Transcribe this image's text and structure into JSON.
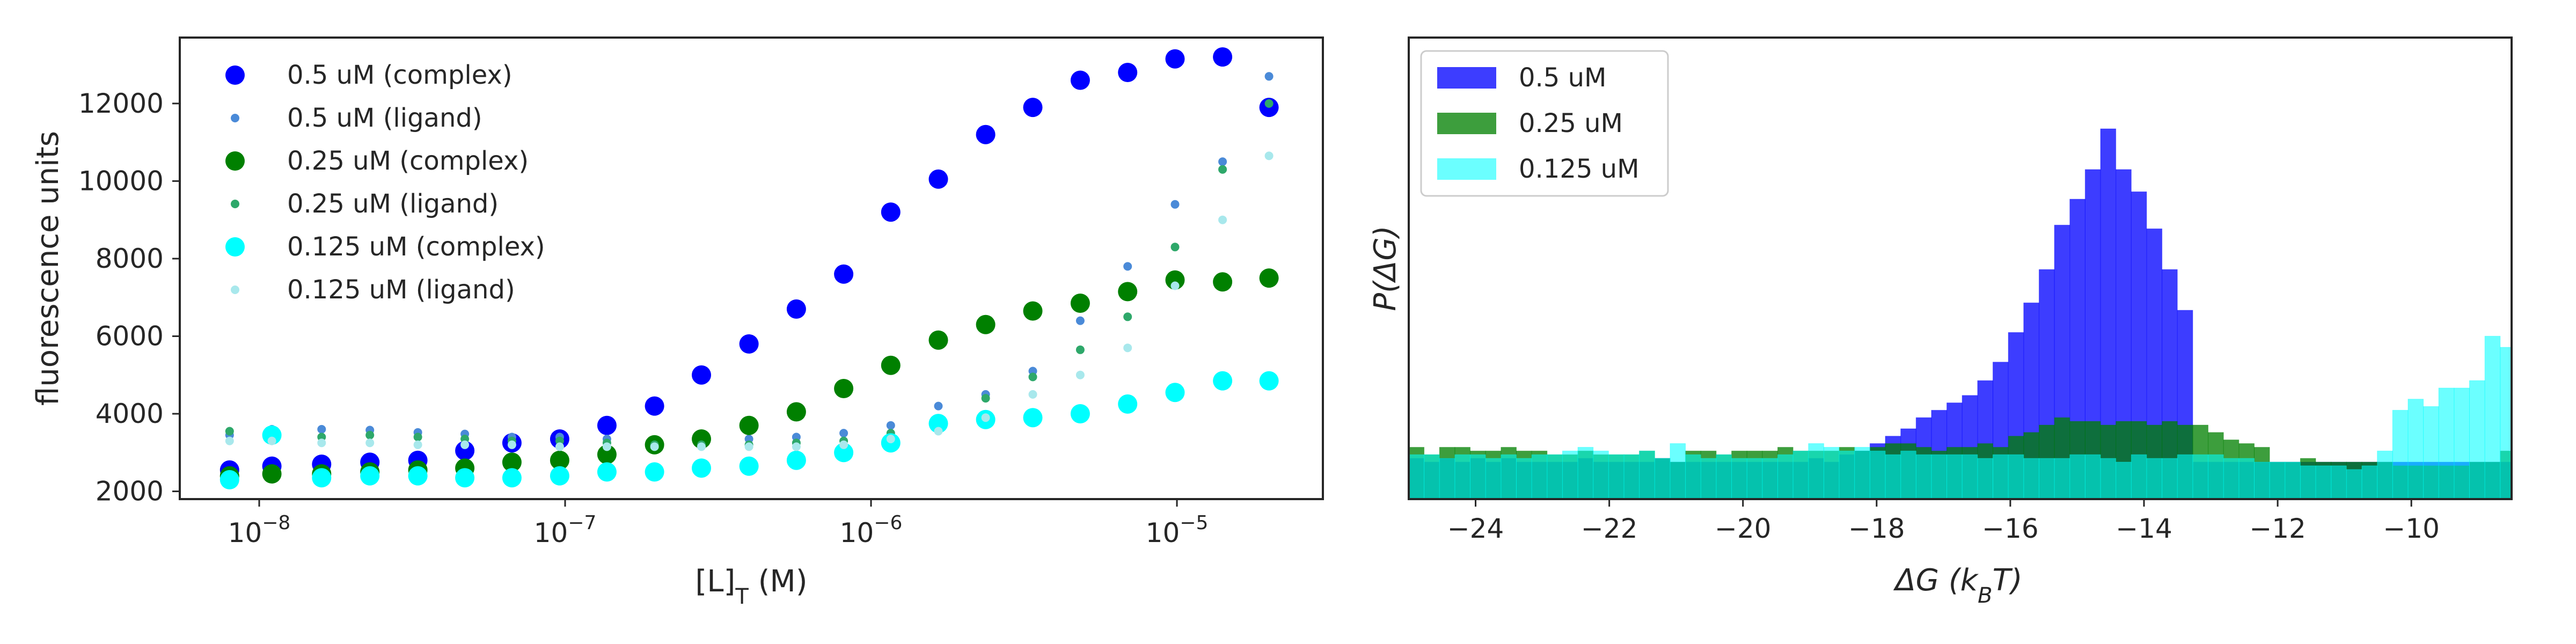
{
  "chart_data": [
    {
      "type": "scatter",
      "xscale": "log",
      "xlim": [
        5.5e-09,
        3e-05
      ],
      "ylim": [
        1800,
        13700
      ],
      "xlabel_main": "[L]",
      "xlabel_sub": "T",
      "xlabel_unit": " (M)",
      "ylabel": "fluorescence units",
      "x_ticks": [
        {
          "label_base": "10",
          "label_exp": "−8"
        },
        {
          "label_base": "10",
          "label_exp": "−7"
        },
        {
          "label_base": "10",
          "label_exp": "−6"
        },
        {
          "label_base": "10",
          "label_exp": "−5"
        }
      ],
      "y_ticks": [
        "2000",
        "4000",
        "6000",
        "8000",
        "10000",
        "12000"
      ],
      "legend_position": "top-left",
      "x": [
        8e-09,
        1.1e-08,
        1.6e-08,
        2.3e-08,
        3.3e-08,
        4.7e-08,
        6.7e-08,
        9.6e-08,
        1.37e-07,
        1.96e-07,
        2.79e-07,
        3.99e-07,
        5.7e-07,
        8.14e-07,
        1.16e-06,
        1.66e-06,
        2.37e-06,
        3.38e-06,
        4.83e-06,
        6.9e-06,
        9.86e-06,
        1.41e-05,
        2e-05
      ],
      "series": [
        {
          "name": "0.5 uM (complex)",
          "color": "#0000ff",
          "marker": "large",
          "y": [
            2550,
            2650,
            2700,
            2750,
            2800,
            3050,
            3250,
            3350,
            3700,
            4200,
            5000,
            5800,
            6700,
            7600,
            9200,
            10050,
            11200,
            11900,
            12600,
            12800,
            13150,
            13200,
            11900
          ]
        },
        {
          "name": "0.5 uM (ligand)",
          "color": "#4a8ad8",
          "marker": "small",
          "y": [
            3450,
            3600,
            3600,
            3580,
            3520,
            3480,
            3400,
            3400,
            3350,
            3300,
            3300,
            3350,
            3400,
            3500,
            3700,
            4200,
            4500,
            5100,
            6400,
            7800,
            9400,
            10500,
            12700
          ]
        },
        {
          "name": "0.25 uM (complex)",
          "color": "#008000",
          "marker": "large",
          "y": [
            2400,
            2450,
            2450,
            2500,
            2550,
            2600,
            2750,
            2800,
            2950,
            3200,
            3350,
            3700,
            4050,
            4650,
            5250,
            5900,
            6300,
            6650,
            6850,
            7150,
            7450,
            7400,
            7500
          ]
        },
        {
          "name": "0.25 uM (ligand)",
          "color": "#2ea86a",
          "marker": "small",
          "y": [
            3550,
            3500,
            3400,
            3450,
            3400,
            3350,
            3300,
            3300,
            3250,
            3200,
            3200,
            3200,
            3250,
            3300,
            3500,
            3850,
            4400,
            4950,
            5650,
            6500,
            8300,
            10300,
            12000
          ]
        },
        {
          "name": "0.125 uM (complex)",
          "color": "#00ffff",
          "marker": "large",
          "y": [
            2300,
            3450,
            2350,
            2400,
            2400,
            2350,
            2350,
            2400,
            2500,
            2500,
            2600,
            2650,
            2800,
            3000,
            3250,
            3750,
            3850,
            3900,
            4000,
            4250,
            4550,
            4850,
            4850
          ]
        },
        {
          "name": "0.125 uM (ligand)",
          "color": "#a8e8ec",
          "marker": "small",
          "y": [
            3300,
            3300,
            3250,
            3250,
            3200,
            3200,
            3200,
            3150,
            3150,
            3150,
            3150,
            3150,
            3150,
            3200,
            3350,
            3550,
            3900,
            4500,
            5000,
            5700,
            7300,
            9000,
            10650
          ]
        }
      ]
    },
    {
      "type": "histogram",
      "xlim": [
        -25,
        -8.5
      ],
      "ylim_max": 1.0,
      "bin_start": -25,
      "bin_width": 0.23,
      "xlabel_main": "ΔG (k",
      "xlabel_sub": "B",
      "xlabel_tail": "T)",
      "ylabel": "P(ΔG)",
      "x_ticks": [
        "−24",
        "−22",
        "−20",
        "−18",
        "−16",
        "−14",
        "−12",
        "−10"
      ],
      "legend_position": "top-left",
      "series": [
        {
          "name": "0.5 uM",
          "color": "#0000ff",
          "alpha": 0.76,
          "values": [
            0.11,
            0.1,
            0.11,
            0.1,
            0.11,
            0.1,
            0.11,
            0.1,
            0.1,
            0.1,
            0.1,
            0.11,
            0.1,
            0.1,
            0.1,
            0.1,
            0.11,
            0.1,
            0.1,
            0.1,
            0.1,
            0.1,
            0.1,
            0.1,
            0.1,
            0.1,
            0.11,
            0.1,
            0.12,
            0.13,
            0.15,
            0.17,
            0.19,
            0.22,
            0.24,
            0.26,
            0.28,
            0.32,
            0.37,
            0.45,
            0.53,
            0.62,
            0.74,
            0.81,
            0.89,
            1.0,
            0.89,
            0.83,
            0.73,
            0.62,
            0.51,
            0.1,
            0.1,
            0.1,
            0.1,
            0.1,
            0.1,
            0.1,
            0.1,
            0.1,
            0.1,
            0.1,
            0.1,
            0.1,
            0.1,
            0.1,
            0.1,
            0.1,
            0.1,
            0.1,
            0.1,
            0.1
          ]
        },
        {
          "name": "0.25 uM",
          "color": "#008000",
          "alpha": 0.76,
          "values": [
            0.14,
            0.12,
            0.14,
            0.14,
            0.13,
            0.13,
            0.14,
            0.13,
            0.13,
            0.12,
            0.12,
            0.13,
            0.12,
            0.12,
            0.12,
            0.13,
            0.11,
            0.1,
            0.13,
            0.13,
            0.12,
            0.13,
            0.13,
            0.13,
            0.14,
            0.13,
            0.13,
            0.13,
            0.14,
            0.13,
            0.14,
            0.15,
            0.15,
            0.14,
            0.13,
            0.14,
            0.14,
            0.15,
            0.14,
            0.17,
            0.18,
            0.2,
            0.22,
            0.21,
            0.21,
            0.2,
            0.21,
            0.21,
            0.2,
            0.21,
            0.2,
            0.2,
            0.18,
            0.16,
            0.15,
            0.14,
            0.1,
            0.1,
            0.11,
            0.1,
            0.1,
            0.1,
            0.1,
            0.1,
            0.09,
            0.09,
            0.09,
            0.09,
            0.09,
            0.1,
            0.1,
            0.13
          ]
        },
        {
          "name": "0.125 uM",
          "color": "#00ffff",
          "alpha": 0.58,
          "values": [
            0.12,
            0.12,
            0.11,
            0.12,
            0.12,
            0.11,
            0.12,
            0.11,
            0.12,
            0.12,
            0.13,
            0.14,
            0.13,
            0.12,
            0.12,
            0.13,
            0.11,
            0.15,
            0.12,
            0.11,
            0.12,
            0.11,
            0.11,
            0.11,
            0.12,
            0.13,
            0.15,
            0.14,
            0.13,
            0.14,
            0.13,
            0.12,
            0.13,
            0.12,
            0.12,
            0.12,
            0.12,
            0.11,
            0.12,
            0.12,
            0.11,
            0.11,
            0.11,
            0.12,
            0.12,
            0.11,
            0.1,
            0.12,
            0.11,
            0.11,
            0.12,
            0.12,
            0.12,
            0.11,
            0.11,
            0.1,
            0.1,
            0.1,
            0.09,
            0.09,
            0.09,
            0.08,
            0.09,
            0.13,
            0.24,
            0.27,
            0.25,
            0.3,
            0.3,
            0.32,
            0.44,
            0.41
          ]
        }
      ]
    }
  ]
}
